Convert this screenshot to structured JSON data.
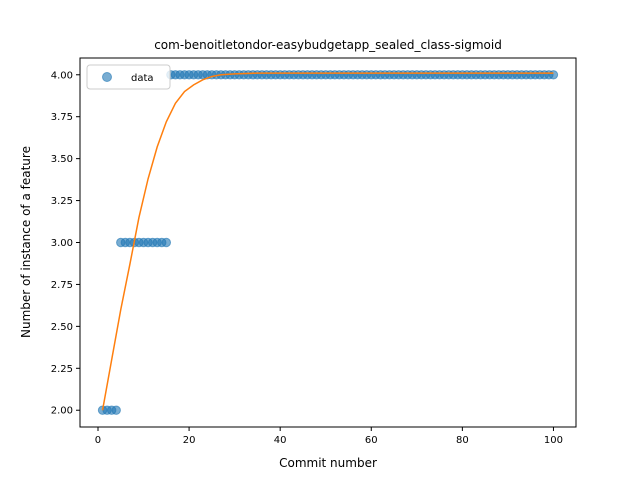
{
  "chart_data": {
    "type": "scatter",
    "title": "com-benoitletondor-easybudgetapp_sealed_class-sigmoid",
    "xlabel": "Commit number",
    "ylabel": "Number of instance of a feature",
    "xlim": [
      -3.95,
      104.95
    ],
    "ylim": [
      1.9,
      4.1
    ],
    "xticks": [
      0,
      20,
      40,
      60,
      80,
      100
    ],
    "xtick_labels": [
      "0",
      "20",
      "40",
      "60",
      "80",
      "100"
    ],
    "yticks": [
      2.0,
      2.25,
      2.5,
      2.75,
      3.0,
      3.25,
      3.5,
      3.75,
      4.0
    ],
    "ytick_labels": [
      "2.00",
      "2.25",
      "2.50",
      "2.75",
      "3.00",
      "3.25",
      "3.50",
      "3.75",
      "4.00"
    ],
    "grid": false,
    "legend_placement": "upper-left",
    "series": [
      {
        "name": "data",
        "kind": "scatter",
        "color": "#1f77b4",
        "x": [
          1,
          2,
          3,
          4,
          5,
          6,
          7,
          8,
          9,
          10,
          11,
          12,
          13,
          14,
          15,
          16,
          17,
          18,
          19,
          20,
          21,
          22,
          23,
          24,
          25,
          26,
          27,
          28,
          29,
          30,
          31,
          32,
          33,
          34,
          35,
          36,
          37,
          38,
          39,
          40,
          41,
          42,
          43,
          44,
          45,
          46,
          47,
          48,
          49,
          50,
          51,
          52,
          53,
          54,
          55,
          56,
          57,
          58,
          59,
          60,
          61,
          62,
          63,
          64,
          65,
          66,
          67,
          68,
          69,
          70,
          71,
          72,
          73,
          74,
          75,
          76,
          77,
          78,
          79,
          80,
          81,
          82,
          83,
          84,
          85,
          86,
          87,
          88,
          89,
          90,
          91,
          92,
          93,
          94,
          95,
          96,
          97,
          98,
          99,
          100
        ],
        "y": [
          2,
          2,
          2,
          2,
          3,
          3,
          3,
          3,
          3,
          3,
          3,
          3,
          3,
          3,
          3,
          4,
          4,
          4,
          4,
          4,
          4,
          4,
          4,
          4,
          4,
          4,
          4,
          4,
          4,
          4,
          4,
          4,
          4,
          4,
          4,
          4,
          4,
          4,
          4,
          4,
          4,
          4,
          4,
          4,
          4,
          4,
          4,
          4,
          4,
          4,
          4,
          4,
          4,
          4,
          4,
          4,
          4,
          4,
          4,
          4,
          4,
          4,
          4,
          4,
          4,
          4,
          4,
          4,
          4,
          4,
          4,
          4,
          4,
          4,
          4,
          4,
          4,
          4,
          4,
          4,
          4,
          4,
          4,
          4,
          4,
          4,
          4,
          4,
          4,
          4,
          4,
          4,
          4,
          4,
          4,
          4,
          4,
          4,
          4,
          4
        ]
      },
      {
        "kind": "line",
        "color": "#ff7f0e",
        "x": [
          1,
          3,
          5,
          7,
          9,
          11,
          13,
          15,
          17,
          19,
          21,
          23,
          25,
          27,
          30,
          35,
          40,
          50,
          60,
          70,
          80,
          90,
          100
        ],
        "y": [
          2.0,
          2.3,
          2.6,
          2.87,
          3.15,
          3.38,
          3.57,
          3.72,
          3.83,
          3.9,
          3.94,
          3.97,
          3.99,
          4.0,
          4.005,
          4.01,
          4.01,
          4.01,
          4.01,
          4.01,
          4.01,
          4.01,
          4.01
        ]
      }
    ]
  }
}
